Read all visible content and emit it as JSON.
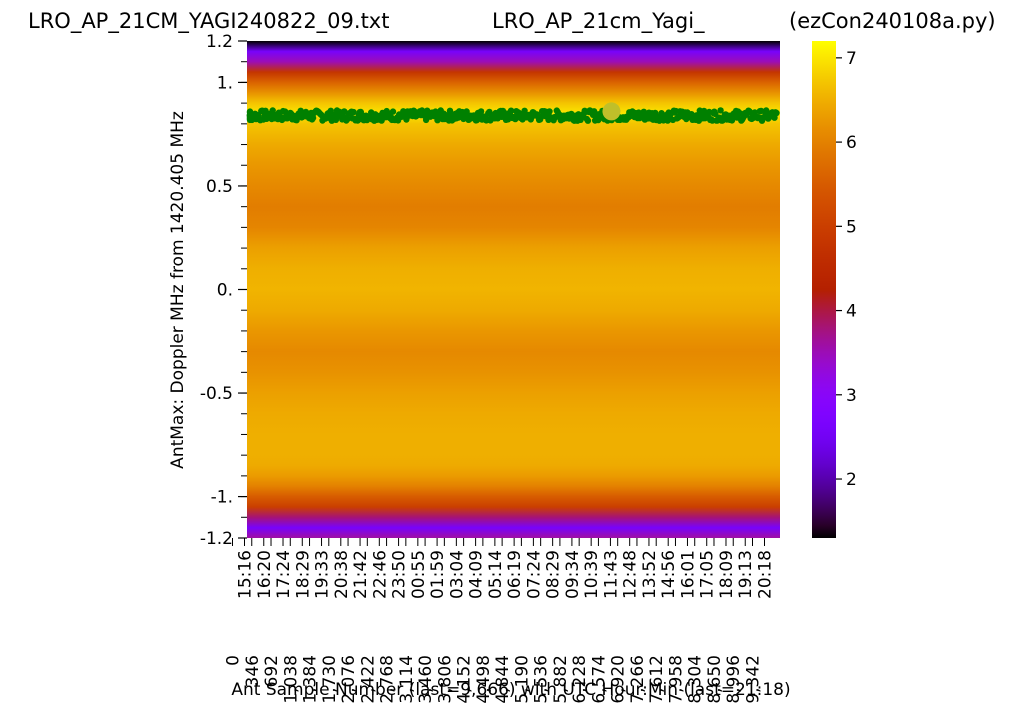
{
  "titles": {
    "left": "LRO_AP_21CM_YAGI240822_09.txt",
    "center": "LRO_AP_21cm_Yagi_",
    "right": "(ezCon240108a.py)"
  },
  "chart_data": {
    "type": "heatmap",
    "xlabel": "Ant Sample Number (last=9,666) with UTC Hour:Min (last=21:18)",
    "ylabel": "AntMax:  Doppler MHz from 1420.405 MHz",
    "ylim": [
      -1.2,
      1.2
    ],
    "xlim": [
      0,
      9666
    ],
    "y_ticks": [
      {
        "value": 1.2,
        "label": "1.2"
      },
      {
        "value": 1.0,
        "label": "1."
      },
      {
        "value": 0.5,
        "label": "0.5"
      },
      {
        "value": 0.0,
        "label": "0."
      },
      {
        "value": -0.5,
        "label": "-0.5"
      },
      {
        "value": -1.0,
        "label": "-1."
      },
      {
        "value": -1.2,
        "label": "-1.2"
      }
    ],
    "y_minor_tick_step": 0.1,
    "x_ticks": [
      {
        "sample": 0,
        "label": "0"
      },
      {
        "sample": 0,
        "label": "15:16"
      },
      {
        "sample": 346,
        "label": "346"
      },
      {
        "sample": 346,
        "label": "16:20"
      },
      {
        "sample": 692,
        "label": "692"
      },
      {
        "sample": 692,
        "label": "17:24"
      },
      {
        "sample": 1038,
        "label": "1,038"
      },
      {
        "sample": 1038,
        "label": "18:29"
      },
      {
        "sample": 1384,
        "label": "1,384"
      },
      {
        "sample": 1384,
        "label": "19:33"
      },
      {
        "sample": 1730,
        "label": "1,730"
      },
      {
        "sample": 1730,
        "label": "20:38"
      },
      {
        "sample": 2076,
        "label": "2,076"
      },
      {
        "sample": 2076,
        "label": "21:42"
      },
      {
        "sample": 2422,
        "label": "2,422"
      },
      {
        "sample": 2422,
        "label": "22:46"
      },
      {
        "sample": 2768,
        "label": "2,768"
      },
      {
        "sample": 2768,
        "label": "23:50"
      },
      {
        "sample": 3114,
        "label": "3,114"
      },
      {
        "sample": 3114,
        "label": "00:55"
      },
      {
        "sample": 3460,
        "label": "3,460"
      },
      {
        "sample": 3460,
        "label": "01:59"
      },
      {
        "sample": 3806,
        "label": "3,806"
      },
      {
        "sample": 3806,
        "label": "03:04"
      },
      {
        "sample": 4152,
        "label": "4,152"
      },
      {
        "sample": 4152,
        "label": "04:09"
      },
      {
        "sample": 4498,
        "label": "4,498"
      },
      {
        "sample": 4498,
        "label": "05:14"
      },
      {
        "sample": 4844,
        "label": "4,844"
      },
      {
        "sample": 4844,
        "label": "06:19"
      },
      {
        "sample": 5190,
        "label": "5,190"
      },
      {
        "sample": 5190,
        "label": "07:24"
      },
      {
        "sample": 5536,
        "label": "5,536"
      },
      {
        "sample": 5536,
        "label": "08:29"
      },
      {
        "sample": 5882,
        "label": "5,882"
      },
      {
        "sample": 5882,
        "label": "09:34"
      },
      {
        "sample": 6228,
        "label": "6,228"
      },
      {
        "sample": 6228,
        "label": "10:39"
      },
      {
        "sample": 6574,
        "label": "6,574"
      },
      {
        "sample": 6574,
        "label": "11:43"
      },
      {
        "sample": 6920,
        "label": "6,920"
      },
      {
        "sample": 6920,
        "label": "12:48"
      },
      {
        "sample": 7266,
        "label": "7,266"
      },
      {
        "sample": 7266,
        "label": "13:52"
      },
      {
        "sample": 7612,
        "label": "7,612"
      },
      {
        "sample": 7612,
        "label": "14:56"
      },
      {
        "sample": 7958,
        "label": "7,958"
      },
      {
        "sample": 7958,
        "label": "16:01"
      },
      {
        "sample": 8304,
        "label": "8,304"
      },
      {
        "sample": 8304,
        "label": "17:05"
      },
      {
        "sample": 8650,
        "label": "8,650"
      },
      {
        "sample": 8650,
        "label": "18:09"
      },
      {
        "sample": 8996,
        "label": "8,996"
      },
      {
        "sample": 8996,
        "label": "19:13"
      },
      {
        "sample": 9342,
        "label": "9,342"
      },
      {
        "sample": 9342,
        "label": "20:18"
      }
    ],
    "colorbar": {
      "colormap": "gnuplot",
      "range": [
        1.3,
        7.2
      ],
      "ticks": [
        {
          "value": 2,
          "label": "2"
        },
        {
          "value": 3,
          "label": "3"
        },
        {
          "value": 4,
          "label": "4"
        },
        {
          "value": 5,
          "label": "5"
        },
        {
          "value": 6,
          "label": "6"
        },
        {
          "value": 7,
          "label": "7"
        }
      ]
    },
    "heatmap_profile": {
      "note_colormap_stops": [
        "#000000",
        "#8a00ff",
        "#c02000",
        "#e07000",
        "#f5c000",
        "#ffff00"
      ],
      "doppler": [
        -1.2,
        -1.15,
        -1.1,
        -1.05,
        -1.0,
        -0.95,
        -0.9,
        -0.85,
        -0.8,
        -0.7,
        -0.6,
        -0.5,
        -0.4,
        -0.3,
        -0.2,
        -0.1,
        0.0,
        0.1,
        0.2,
        0.3,
        0.4,
        0.5,
        0.6,
        0.7,
        0.8,
        0.85,
        0.9,
        0.95,
        1.0,
        1.05,
        1.1,
        1.15,
        1.2
      ],
      "value": [
        3.6,
        2.6,
        3.8,
        5.0,
        5.5,
        6.0,
        6.3,
        6.45,
        6.5,
        6.5,
        6.45,
        6.35,
        6.2,
        6.1,
        6.25,
        6.45,
        6.55,
        6.5,
        6.35,
        6.05,
        5.95,
        6.1,
        6.25,
        6.45,
        6.7,
        7.0,
        6.7,
        6.2,
        5.6,
        4.8,
        3.5,
        2.6,
        1.3
      ]
    },
    "series": [
      {
        "type": "scatter",
        "color": "#008000",
        "doppler_center": 0.84,
        "doppler_spread": 0.025
      },
      {
        "type": "marker",
        "color": "#bfbf2a",
        "x": 6700,
        "y": 0.86
      }
    ]
  }
}
